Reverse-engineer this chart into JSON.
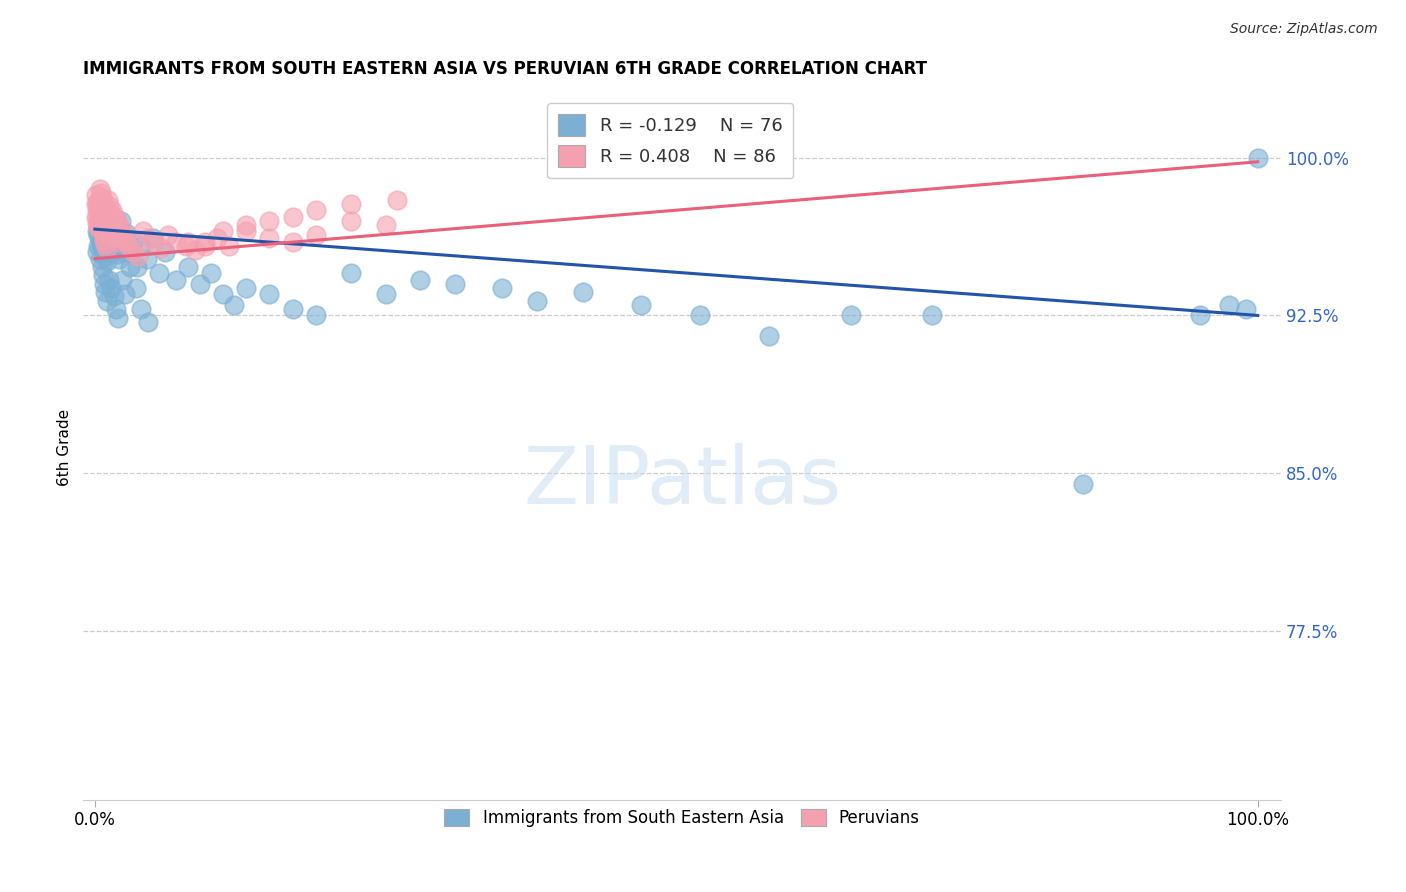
{
  "title": "IMMIGRANTS FROM SOUTH EASTERN ASIA VS PERUVIAN 6TH GRADE CORRELATION CHART",
  "source": "Source: ZipAtlas.com",
  "ylabel": "6th Grade",
  "label_blue": "Immigrants from South Eastern Asia",
  "label_pink": "Peruvians",
  "yticks": [
    1.0,
    0.925,
    0.85,
    0.775
  ],
  "ytick_labels": [
    "100.0%",
    "92.5%",
    "85.0%",
    "77.5%"
  ],
  "ymin": 0.695,
  "ymax": 1.03,
  "xmin": -0.01,
  "xmax": 1.02,
  "blue_color": "#7BAFD4",
  "pink_color": "#F4A0B0",
  "blue_line_color": "#2255AA",
  "pink_line_color": "#E8607A",
  "legend_R_blue": "-0.129",
  "legend_N_blue": "76",
  "legend_R_pink": "0.408",
  "legend_N_pink": "86",
  "blue_line_x0": 0.0,
  "blue_line_y0": 0.966,
  "blue_line_x1": 1.0,
  "blue_line_y1": 0.925,
  "pink_line_x0": 0.0,
  "pink_line_y0": 0.952,
  "pink_line_x1": 1.0,
  "pink_line_y1": 0.998,
  "watermark_text": "ZIPatlas",
  "blue_x": [
    0.002,
    0.003,
    0.004,
    0.005,
    0.006,
    0.007,
    0.008,
    0.009,
    0.01,
    0.011,
    0.012,
    0.013,
    0.015,
    0.016,
    0.017,
    0.018,
    0.019,
    0.021,
    0.022,
    0.025,
    0.027,
    0.03,
    0.033,
    0.036,
    0.04,
    0.045,
    0.05,
    0.055,
    0.06,
    0.07,
    0.08,
    0.09,
    0.1,
    0.11,
    0.12,
    0.13,
    0.15,
    0.17,
    0.19,
    0.22,
    0.25,
    0.28,
    0.31,
    0.35,
    0.38,
    0.42,
    0.47,
    0.52,
    0.58,
    0.65,
    0.002,
    0.003,
    0.004,
    0.005,
    0.006,
    0.007,
    0.008,
    0.009,
    0.01,
    0.012,
    0.014,
    0.016,
    0.018,
    0.02,
    0.023,
    0.026,
    0.03,
    0.035,
    0.04,
    0.046,
    0.72,
    0.85,
    0.95,
    0.975,
    0.99,
    1.0
  ],
  "blue_y": [
    0.965,
    0.963,
    0.961,
    0.959,
    0.957,
    0.965,
    0.955,
    0.953,
    0.951,
    0.962,
    0.958,
    0.964,
    0.96,
    0.962,
    0.958,
    0.956,
    0.954,
    0.952,
    0.97,
    0.955,
    0.964,
    0.955,
    0.96,
    0.948,
    0.958,
    0.952,
    0.962,
    0.945,
    0.955,
    0.942,
    0.948,
    0.94,
    0.945,
    0.935,
    0.93,
    0.938,
    0.935,
    0.928,
    0.925,
    0.945,
    0.935,
    0.942,
    0.94,
    0.938,
    0.932,
    0.936,
    0.93,
    0.925,
    0.915,
    0.925,
    0.955,
    0.958,
    0.952,
    0.96,
    0.948,
    0.944,
    0.94,
    0.936,
    0.932,
    0.942,
    0.938,
    0.934,
    0.928,
    0.924,
    0.942,
    0.935,
    0.948,
    0.938,
    0.928,
    0.922,
    0.925,
    0.845,
    0.925,
    0.93,
    0.928,
    1.0
  ],
  "pink_x": [
    0.001,
    0.002,
    0.003,
    0.004,
    0.005,
    0.006,
    0.007,
    0.008,
    0.009,
    0.01,
    0.011,
    0.012,
    0.013,
    0.014,
    0.015,
    0.016,
    0.017,
    0.018,
    0.019,
    0.02,
    0.001,
    0.002,
    0.003,
    0.004,
    0.005,
    0.006,
    0.007,
    0.008,
    0.009,
    0.01,
    0.011,
    0.012,
    0.013,
    0.015,
    0.017,
    0.019,
    0.021,
    0.023,
    0.025,
    0.027,
    0.001,
    0.002,
    0.003,
    0.004,
    0.005,
    0.006,
    0.007,
    0.008,
    0.009,
    0.01,
    0.012,
    0.014,
    0.016,
    0.018,
    0.021,
    0.024,
    0.027,
    0.03,
    0.033,
    0.037,
    0.041,
    0.046,
    0.051,
    0.057,
    0.063,
    0.07,
    0.078,
    0.086,
    0.095,
    0.105,
    0.115,
    0.13,
    0.15,
    0.17,
    0.19,
    0.22,
    0.25,
    0.08,
    0.095,
    0.11,
    0.13,
    0.15,
    0.17,
    0.19,
    0.22,
    0.26
  ],
  "pink_y": [
    0.978,
    0.975,
    0.972,
    0.97,
    0.968,
    0.965,
    0.963,
    0.961,
    0.959,
    0.957,
    0.98,
    0.977,
    0.974,
    0.972,
    0.97,
    0.968,
    0.966,
    0.964,
    0.962,
    0.96,
    0.972,
    0.969,
    0.967,
    0.975,
    0.973,
    0.971,
    0.978,
    0.975,
    0.972,
    0.97,
    0.968,
    0.965,
    0.963,
    0.975,
    0.972,
    0.97,
    0.968,
    0.965,
    0.963,
    0.96,
    0.982,
    0.979,
    0.977,
    0.985,
    0.983,
    0.981,
    0.979,
    0.976,
    0.974,
    0.972,
    0.97,
    0.968,
    0.965,
    0.963,
    0.965,
    0.962,
    0.96,
    0.957,
    0.955,
    0.953,
    0.965,
    0.962,
    0.96,
    0.957,
    0.963,
    0.96,
    0.958,
    0.956,
    0.96,
    0.962,
    0.958,
    0.965,
    0.962,
    0.96,
    0.963,
    0.97,
    0.968,
    0.96,
    0.958,
    0.965,
    0.968,
    0.97,
    0.972,
    0.975,
    0.978,
    0.98
  ]
}
